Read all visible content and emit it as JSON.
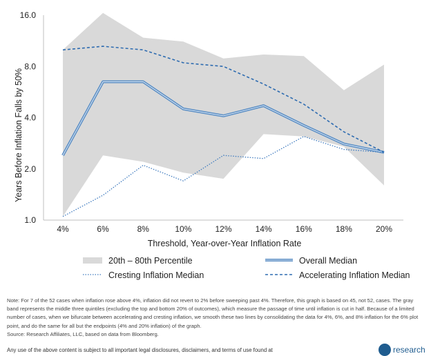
{
  "chart_data": {
    "type": "line",
    "xlabel": "Threshold, Year-over-Year Inflation Rate",
    "ylabel": "Years Before Inflation Falls by 50%",
    "y_scale": "log2",
    "ylim": [
      1.0,
      16.0
    ],
    "y_ticks": [
      "1.0",
      "2.0",
      "4.0",
      "8.0",
      "16.0"
    ],
    "grid": false,
    "legend_position": "bottom",
    "categories": [
      "4%",
      "6%",
      "8%",
      "10%",
      "12%",
      "14%",
      "16%",
      "18%",
      "20%"
    ],
    "band": {
      "name": "20th – 80th Percentile",
      "color": "#d9d9d9",
      "upper": [
        10.0,
        16.5,
        11.8,
        11.2,
        8.9,
        9.4,
        9.2,
        5.8,
        8.2
      ],
      "lower": [
        1.05,
        2.4,
        2.2,
        1.9,
        1.75,
        3.2,
        3.1,
        2.7,
        1.6
      ]
    },
    "series": [
      {
        "name": "Overall Median",
        "style": "solid",
        "color": "#5b8ec4",
        "values": [
          2.4,
          6.5,
          6.5,
          4.5,
          4.1,
          4.7,
          3.6,
          2.8,
          2.5
        ]
      },
      {
        "name": "Cresting Inflation Median",
        "style": "dotted",
        "color": "#3f7bbf",
        "values": [
          1.05,
          1.4,
          2.1,
          1.7,
          2.4,
          2.3,
          3.1,
          2.6,
          2.5
        ]
      },
      {
        "name": "Accelerating Inflation Median",
        "style": "dashed",
        "color": "#2d6bb0",
        "values": [
          10.0,
          10.5,
          10.0,
          8.4,
          8.0,
          6.3,
          4.8,
          3.3,
          2.5
        ]
      }
    ]
  },
  "note_text": "Note: For 7 of the 52 cases when inflation rose above 4%, inflation did not revert to 2% before sweeping past 4%. Therefore, this graph is based on 45, not 52, cases. The gray band represents the middle three quintiles (excluding the top and bottom 20% of outcomes), which measure the passage of time until inflation is cut in half. Because of a limited number of cases, when we bifurcate between accelerating and cresting inflation, we smooth these two lines by consolidating the data for 4%, 6%, and 8% inflation for the 6% plot point, and do the same for all but the endpoints (4% and 20% inflation) of the graph.",
  "source_text": "Source: Research Affiliates, LLC, based on data from Bloomberg.",
  "footer_text": "Any use of the above content is subject to all important legal disclosures, disclaimers, and terms of use found at",
  "brand_text": "research"
}
